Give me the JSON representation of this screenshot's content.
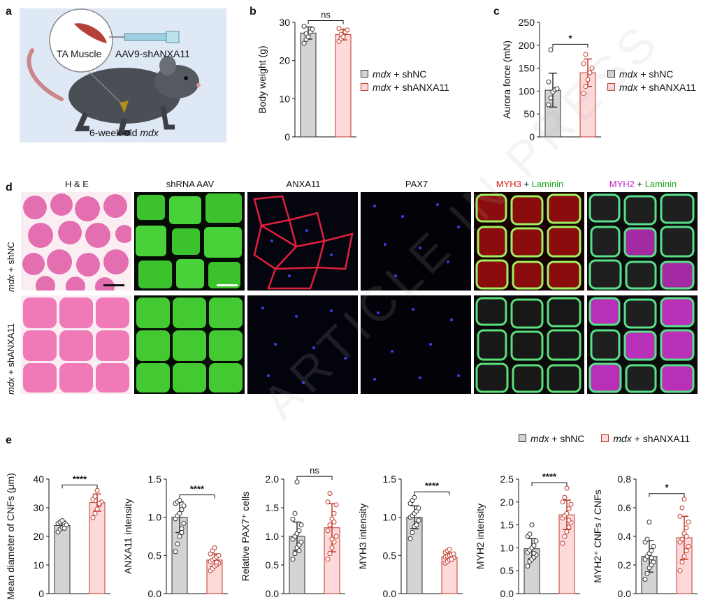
{
  "panels": {
    "a": {
      "letter": "a",
      "muscle_label": "TA Muscle",
      "vector_label": "AAV9-shANXA11",
      "age_prefix": "6-week-old ",
      "age_strain": "mdx"
    },
    "b": {
      "letter": "b"
    },
    "c": {
      "letter": "c"
    },
    "d": {
      "letter": "d",
      "columns": [
        "H & E",
        "shRNA AAV",
        "ANXA11",
        "PAX7"
      ],
      "col5_a": "MYH3",
      "col5_plus": " + ",
      "col5_b": "Laminin",
      "col6_a": "MYH2",
      "col6_plus": " + ",
      "col6_b": "Laminin",
      "row1_italic": "mdx",
      "row1_rest": " + shNC",
      "row2_italic": "mdx",
      "row2_rest": " + shANXA11"
    },
    "e": {
      "letter": "e"
    }
  },
  "legend": {
    "group1_italic": "mdx",
    "group1_rest": " + shNC",
    "group2_italic": "mdx",
    "group2_rest": " + shANXA11"
  },
  "colors": {
    "shNC_fill": "#d3d3d3",
    "shNC_edge": "#333333",
    "shANXA11_fill": "#fdd9d9",
    "shANXA11_edge": "#c0392b"
  },
  "watermark": "ARTICLE IN PRESS",
  "chart_data": [
    {
      "id": "b",
      "type": "bar",
      "ylabel": "Body weight (g)",
      "ylim": [
        0,
        30
      ],
      "yticks": [
        0,
        10,
        20,
        30
      ],
      "categories": [
        "mdx + shNC",
        "mdx + shANXA11"
      ],
      "series": [
        {
          "values": [
            27.2,
            26.8
          ]
        }
      ],
      "error": [
        1.6,
        1.4
      ],
      "points": [
        [
          24.5,
          25.5,
          26.8,
          27.5,
          28.2,
          29.0,
          27.0,
          26.2
        ],
        [
          25.0,
          25.8,
          26.5,
          27.5,
          28.0,
          28.4,
          26.9,
          26.2
        ]
      ],
      "significance": "ns"
    },
    {
      "id": "c",
      "type": "bar",
      "ylabel": "Aurora force (mN)",
      "ylim": [
        0,
        250
      ],
      "yticks": [
        0,
        50,
        100,
        150,
        200,
        250
      ],
      "categories": [
        "mdx + shNC",
        "mdx + shANXA11"
      ],
      "series": [
        {
          "values": [
            102,
            140
          ]
        }
      ],
      "error": [
        37,
        30
      ],
      "points": [
        [
          70,
          85,
          98,
          103,
          105,
          120,
          190
        ],
        [
          95,
          110,
          125,
          140,
          150,
          160,
          180
        ]
      ],
      "significance": "*"
    },
    {
      "id": "e1",
      "type": "bar",
      "ylabel": "Mean diameter of CNFs (μm)",
      "ylim": [
        0,
        40
      ],
      "yticks": [
        0,
        10,
        20,
        30,
        40
      ],
      "categories": [
        "mdx + shNC",
        "mdx + shANXA11"
      ],
      "series": [
        {
          "values": [
            23.8,
            31.8
          ]
        }
      ],
      "error": [
        1.5,
        3.0
      ],
      "points": [
        [
          21.5,
          22.5,
          23.0,
          23.5,
          24.0,
          24.5,
          25.0,
          25.5,
          22.8
        ],
        [
          26.5,
          28.0,
          29.5,
          31.0,
          32.0,
          33.0,
          34.0,
          36.0,
          31.5
        ]
      ],
      "significance": "****"
    },
    {
      "id": "e2",
      "type": "bar",
      "ylabel": "ANXA11 intensity",
      "ylim": [
        0,
        1.5
      ],
      "yticks": [
        0,
        0.5,
        1.0,
        1.5
      ],
      "tick_labels": [
        "0.0",
        "0.5",
        "1.0",
        "1.5"
      ],
      "categories": [
        "mdx + shNC",
        "mdx + shANXA11"
      ],
      "series": [
        {
          "values": [
            1.0,
            0.44
          ]
        }
      ],
      "error": [
        0.2,
        0.08
      ],
      "points": [
        [
          0.55,
          0.65,
          0.75,
          0.85,
          0.92,
          0.98,
          1.02,
          1.05,
          1.1,
          1.15,
          1.18,
          1.2,
          1.22,
          0.8
        ],
        [
          0.3,
          0.33,
          0.36,
          0.38,
          0.4,
          0.42,
          0.44,
          0.46,
          0.48,
          0.5,
          0.52,
          0.56,
          0.6,
          0.41
        ]
      ],
      "significance": "****"
    },
    {
      "id": "e3",
      "type": "bar",
      "ylabel": "Relative PAX7⁺ cells",
      "ylim": [
        0,
        2.0
      ],
      "yticks": [
        0,
        0.5,
        1.0,
        1.5,
        2.0
      ],
      "tick_labels": [
        "0.0",
        "0.5",
        "1.0",
        "1.5",
        "2.0"
      ],
      "categories": [
        "mdx + shNC",
        "mdx + shANXA11"
      ],
      "series": [
        {
          "values": [
            1.0,
            1.15
          ]
        }
      ],
      "error": [
        0.25,
        0.42
      ],
      "points": [
        [
          0.6,
          0.7,
          0.8,
          0.85,
          0.9,
          0.95,
          1.0,
          1.05,
          1.1,
          1.2,
          1.3,
          1.4,
          1.95,
          0.75
        ],
        [
          0.6,
          0.7,
          0.8,
          0.9,
          1.0,
          1.1,
          1.2,
          1.3,
          1.4,
          1.55,
          1.6,
          1.75,
          0.95,
          1.25
        ]
      ],
      "significance": "ns"
    },
    {
      "id": "e4",
      "type": "bar",
      "ylabel": "MYH3 intensity",
      "ylim": [
        0,
        1.5
      ],
      "yticks": [
        0,
        0.5,
        1.0,
        1.5
      ],
      "tick_labels": [
        "0.0",
        "0.5",
        "1.0",
        "1.5"
      ],
      "categories": [
        "mdx + shNC",
        "mdx + shANXA11"
      ],
      "series": [
        {
          "values": [
            1.0,
            0.48
          ]
        }
      ],
      "error": [
        0.15,
        0.05
      ],
      "points": [
        [
          0.72,
          0.8,
          0.88,
          0.92,
          0.96,
          1.0,
          1.02,
          1.05,
          1.08,
          1.12,
          1.18,
          1.22,
          1.26,
          0.9
        ],
        [
          0.4,
          0.42,
          0.44,
          0.46,
          0.47,
          0.48,
          0.49,
          0.5,
          0.51,
          0.52,
          0.54,
          0.56,
          0.58,
          0.45
        ]
      ],
      "significance": "****"
    },
    {
      "id": "e5",
      "type": "bar",
      "ylabel": "MYH2 intensity",
      "ylim": [
        0,
        2.5
      ],
      "yticks": [
        0,
        0.5,
        1.0,
        1.5,
        2.0,
        2.5
      ],
      "tick_labels": [
        "0.0",
        "0.5",
        "1.0",
        "1.5",
        "2.0",
        "2.5"
      ],
      "categories": [
        "mdx + shNC",
        "mdx + shANXA11"
      ],
      "series": [
        {
          "values": [
            0.98,
            1.72
          ]
        }
      ],
      "error": [
        0.22,
        0.32
      ],
      "points": [
        [
          0.6,
          0.7,
          0.75,
          0.8,
          0.85,
          0.9,
          0.95,
          1.0,
          1.05,
          1.15,
          1.25,
          1.3,
          1.5,
          0.88
        ],
        [
          1.1,
          1.25,
          1.35,
          1.45,
          1.55,
          1.65,
          1.7,
          1.75,
          1.85,
          1.95,
          2.0,
          2.1,
          2.3,
          1.6
        ]
      ],
      "significance": "****"
    },
    {
      "id": "e6",
      "type": "bar",
      "ylabel": "MYH2⁺ CNFs / CNFs",
      "ylim": [
        0,
        0.8
      ],
      "yticks": [
        0,
        0.2,
        0.4,
        0.6,
        0.8
      ],
      "tick_labels": [
        "0.0",
        "0.2",
        "0.4",
        "0.6",
        "0.8"
      ],
      "categories": [
        "mdx + shNC",
        "mdx + shANXA11"
      ],
      "series": [
        {
          "values": [
            0.26,
            0.39
          ]
        }
      ],
      "error": [
        0.11,
        0.15
      ],
      "points": [
        [
          0.1,
          0.14,
          0.18,
          0.2,
          0.22,
          0.24,
          0.26,
          0.28,
          0.3,
          0.33,
          0.36,
          0.38,
          0.5,
          0.25
        ],
        [
          0.16,
          0.22,
          0.26,
          0.3,
          0.33,
          0.36,
          0.38,
          0.42,
          0.46,
          0.5,
          0.54,
          0.6,
          0.66,
          0.4
        ]
      ],
      "significance": "*"
    }
  ]
}
